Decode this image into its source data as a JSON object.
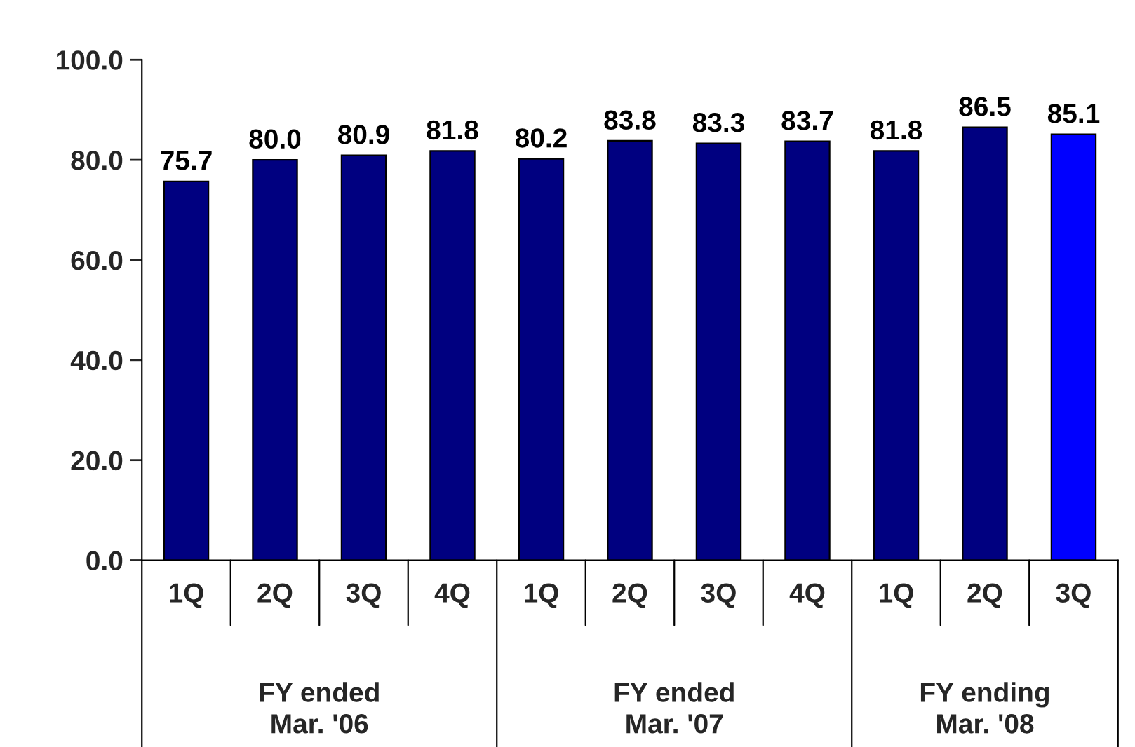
{
  "chart_data": {
    "type": "bar",
    "categories": [
      "1Q",
      "2Q",
      "3Q",
      "4Q",
      "1Q",
      "2Q",
      "3Q",
      "4Q",
      "1Q",
      "2Q",
      "3Q"
    ],
    "values": [
      75.7,
      80.0,
      80.9,
      81.8,
      80.2,
      83.8,
      83.3,
      83.7,
      81.8,
      86.5,
      85.1
    ],
    "colors": [
      "#000080",
      "#000080",
      "#000080",
      "#000080",
      "#000080",
      "#000080",
      "#000080",
      "#000080",
      "#000080",
      "#000080",
      "#0000ff"
    ],
    "ylim": [
      0,
      100
    ],
    "yticks": [
      {
        "value": 0,
        "label": "0.0"
      },
      {
        "value": 20,
        "label": "20.0"
      },
      {
        "value": 40,
        "label": "40.0"
      },
      {
        "value": 60,
        "label": "60.0"
      },
      {
        "value": 80,
        "label": "80.0"
      },
      {
        "value": 100,
        "label": "100.0"
      }
    ],
    "value_labels": [
      "75.7",
      "80.0",
      "80.9",
      "81.8",
      "80.2",
      "83.8",
      "83.3",
      "83.7",
      "81.8",
      "86.5",
      "85.1"
    ],
    "annotations": [
      "FY ended\nMar. '06",
      "FY ended\nMar. '07",
      "FY ending\nMar. '08"
    ]
  }
}
